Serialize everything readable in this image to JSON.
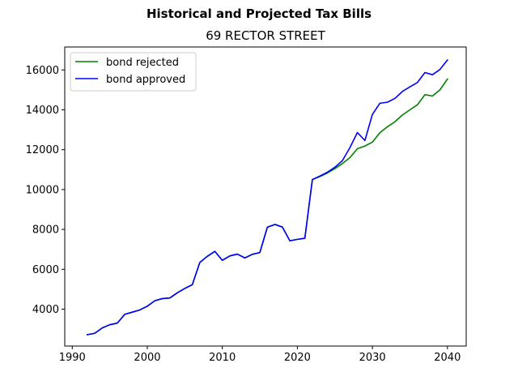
{
  "chart_data": {
    "type": "line",
    "suptitle": "Historical and Projected Tax Bills",
    "title": "69 RECTOR STREET",
    "xlabel": "",
    "ylabel": "",
    "xlim": [
      1989,
      2042.5
    ],
    "ylim": [
      2150,
      17150
    ],
    "xticks": [
      1990,
      2000,
      2010,
      2020,
      2030,
      2040
    ],
    "yticks": [
      4000,
      6000,
      8000,
      10000,
      12000,
      14000,
      16000
    ],
    "grid": false,
    "legend": "upper-left",
    "series": [
      {
        "name": "bond rejected",
        "color": "#008000",
        "x": [
          1992,
          1993,
          1994,
          1995,
          1996,
          1997,
          1998,
          1999,
          2000,
          2001,
          2002,
          2003,
          2004,
          2005,
          2006,
          2007,
          2008,
          2009,
          2010,
          2011,
          2012,
          2013,
          2014,
          2015,
          2016,
          2017,
          2018,
          2019,
          2020,
          2021,
          2022,
          2023,
          2024,
          2025,
          2026,
          2027,
          2028,
          2029,
          2030,
          2031,
          2032,
          2033,
          2034,
          2035,
          2036,
          2037,
          2038,
          2039,
          2040
        ],
        "y": [
          2720,
          2790,
          3060,
          3220,
          3300,
          3740,
          3850,
          3960,
          4150,
          4420,
          4530,
          4560,
          4820,
          5040,
          5230,
          6340,
          6650,
          6900,
          6450,
          6670,
          6760,
          6570,
          6750,
          6840,
          8110,
          8250,
          8120,
          7430,
          7500,
          7560,
          10500,
          10650,
          10830,
          11050,
          11300,
          11600,
          12050,
          12180,
          12380,
          12850,
          13150,
          13400,
          13740,
          14000,
          14250,
          14760,
          14690,
          15000,
          15540
        ]
      },
      {
        "name": "bond approved",
        "color": "#0000ff",
        "x": [
          1992,
          1993,
          1994,
          1995,
          1996,
          1997,
          1998,
          1999,
          2000,
          2001,
          2002,
          2003,
          2004,
          2005,
          2006,
          2007,
          2008,
          2009,
          2010,
          2011,
          2012,
          2013,
          2014,
          2015,
          2016,
          2017,
          2018,
          2019,
          2020,
          2021,
          2022,
          2023,
          2024,
          2025,
          2026,
          2027,
          2028,
          2029,
          2030,
          2031,
          2032,
          2033,
          2034,
          2035,
          2036,
          2037,
          2038,
          2039,
          2040
        ],
        "y": [
          2720,
          2790,
          3060,
          3220,
          3300,
          3740,
          3850,
          3960,
          4150,
          4420,
          4530,
          4560,
          4820,
          5040,
          5230,
          6340,
          6650,
          6900,
          6450,
          6670,
          6760,
          6570,
          6750,
          6840,
          8110,
          8250,
          8120,
          7430,
          7500,
          7560,
          10500,
          10680,
          10870,
          11120,
          11450,
          12100,
          12860,
          12460,
          13770,
          14330,
          14380,
          14570,
          14920,
          15150,
          15370,
          15870,
          15760,
          16020,
          16500
        ]
      }
    ]
  }
}
